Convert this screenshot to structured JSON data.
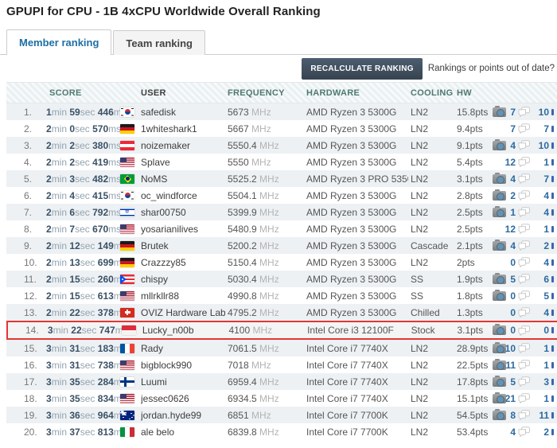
{
  "page_title": "GPUPI for CPU - 1B 4xCPU Worldwide Overall Ranking",
  "tabs": {
    "member": "Member ranking",
    "team": "Team ranking"
  },
  "toolbar": {
    "recalculate_label": "RECALCULATE RANKING",
    "out_of_date_label": "Rankings or points out of date?"
  },
  "table": {
    "columns": [
      "SCORE",
      "USER",
      "FREQUENCY",
      "HARDWARE",
      "COOLING",
      "HW"
    ],
    "rows": [
      {
        "rank": "1.",
        "min": "1",
        "sec": "59",
        "ms": "446",
        "country": "kr",
        "user": "safedisk",
        "frequency": "5673",
        "hardware": "AMD Ryzen 3 5300G",
        "cooling": "LN2",
        "points": "15.8pts",
        "has_photo": true,
        "comments": "7",
        "likes": "10",
        "highlight": false
      },
      {
        "rank": "2.",
        "min": "2",
        "sec": "0",
        "ms": "570",
        "country": "de",
        "user": "1whiteshark1",
        "frequency": "5667",
        "hardware": "AMD Ryzen 3 5300G",
        "cooling": "LN2",
        "points": "9.4pts",
        "has_photo": false,
        "comments": "7",
        "likes": "7",
        "highlight": false
      },
      {
        "rank": "3.",
        "min": "2",
        "sec": "2",
        "ms": "380",
        "country": "at",
        "user": "noizemaker",
        "frequency": "5550.4",
        "hardware": "AMD Ryzen 3 5300G",
        "cooling": "LN2",
        "points": "9.1pts",
        "has_photo": true,
        "comments": "4",
        "likes": "10",
        "highlight": false
      },
      {
        "rank": "4.",
        "min": "2",
        "sec": "2",
        "ms": "419",
        "country": "us",
        "user": "Splave",
        "frequency": "5550",
        "hardware": "AMD Ryzen 3 5300G",
        "cooling": "LN2",
        "points": "5.4pts",
        "has_photo": false,
        "comments": "12",
        "likes": "1",
        "highlight": false
      },
      {
        "rank": "5.",
        "min": "2",
        "sec": "3",
        "ms": "482",
        "country": "br",
        "user": "NoMS",
        "frequency": "5525.2",
        "hardware": "AMD Ryzen 3 PRO 5350G",
        "cooling": "LN2",
        "points": "3.1pts",
        "has_photo": true,
        "comments": "4",
        "likes": "7",
        "highlight": false
      },
      {
        "rank": "6.",
        "min": "2",
        "sec": "4",
        "ms": "415",
        "country": "kr",
        "user": "oc_windforce",
        "frequency": "5504.1",
        "hardware": "AMD Ryzen 3 5300G",
        "cooling": "LN2",
        "points": "2.8pts",
        "has_photo": true,
        "comments": "2",
        "likes": "4",
        "highlight": false
      },
      {
        "rank": "7.",
        "min": "2",
        "sec": "6",
        "ms": "792",
        "country": "il",
        "user": "shar00750",
        "frequency": "5399.9",
        "hardware": "AMD Ryzen 3 5300G",
        "cooling": "LN2",
        "points": "2.5pts",
        "has_photo": true,
        "comments": "1",
        "likes": "4",
        "highlight": false
      },
      {
        "rank": "8.",
        "min": "2",
        "sec": "7",
        "ms": "670",
        "country": "us",
        "user": "yosarianilives",
        "frequency": "5480.9",
        "hardware": "AMD Ryzen 3 5300G",
        "cooling": "LN2",
        "points": "2.5pts",
        "has_photo": false,
        "comments": "12",
        "likes": "1",
        "highlight": false
      },
      {
        "rank": "9.",
        "min": "2",
        "sec": "12",
        "ms": "149",
        "country": "de",
        "user": "Brutek",
        "frequency": "5200.2",
        "hardware": "AMD Ryzen 3 5300G",
        "cooling": "Cascade",
        "points": "2.1pts",
        "has_photo": true,
        "comments": "4",
        "likes": "2",
        "highlight": false
      },
      {
        "rank": "10.",
        "min": "2",
        "sec": "13",
        "ms": "699",
        "country": "de",
        "user": "Crazzzy85",
        "frequency": "5150.4",
        "hardware": "AMD Ryzen 3 5300G",
        "cooling": "LN2",
        "points": "2pts",
        "has_photo": false,
        "comments": "0",
        "likes": "4",
        "highlight": false
      },
      {
        "rank": "11.",
        "min": "2",
        "sec": "15",
        "ms": "260",
        "country": "pr",
        "user": "chispy",
        "frequency": "5030.4",
        "hardware": "AMD Ryzen 3 5300G",
        "cooling": "SS",
        "points": "1.9pts",
        "has_photo": true,
        "comments": "5",
        "likes": "6",
        "highlight": false
      },
      {
        "rank": "12.",
        "min": "2",
        "sec": "15",
        "ms": "613",
        "country": "us",
        "user": "mllrkllr88",
        "frequency": "4990.8",
        "hardware": "AMD Ryzen 3 5300G",
        "cooling": "SS",
        "points": "1.8pts",
        "has_photo": true,
        "comments": "0",
        "likes": "5",
        "highlight": false
      },
      {
        "rank": "13.",
        "min": "2",
        "sec": "22",
        "ms": "378",
        "country": "ch",
        "user": "OVIZ Hardware Lab",
        "frequency": "4795.2",
        "hardware": "AMD Ryzen 3 5300G",
        "cooling": "Chilled",
        "points": "1.3pts",
        "has_photo": false,
        "comments": "0",
        "likes": "4",
        "highlight": false
      },
      {
        "rank": "14.",
        "min": "3",
        "sec": "22",
        "ms": "747",
        "country": "id",
        "user": "Lucky_n00b",
        "frequency": "4100",
        "hardware": "Intel Core i3 12100F",
        "cooling": "Stock",
        "points": "3.1pts",
        "has_photo": true,
        "comments": "0",
        "likes": "0",
        "highlight": true
      },
      {
        "rank": "15.",
        "min": "3",
        "sec": "31",
        "ms": "183",
        "country": "fr",
        "user": "Rady",
        "frequency": "7061.5",
        "hardware": "Intel Core i7 7740X",
        "cooling": "LN2",
        "points": "28.9pts",
        "has_photo": true,
        "comments": "10",
        "likes": "1",
        "highlight": false
      },
      {
        "rank": "16.",
        "min": "3",
        "sec": "31",
        "ms": "738",
        "country": "us",
        "user": "bigblock990",
        "frequency": "7018",
        "hardware": "Intel Core i7 7740X",
        "cooling": "LN2",
        "points": "22.5pts",
        "has_photo": true,
        "comments": "11",
        "likes": "1",
        "highlight": false
      },
      {
        "rank": "17.",
        "min": "3",
        "sec": "35",
        "ms": "284",
        "country": "fi",
        "user": "Luumi",
        "frequency": "6959.4",
        "hardware": "Intel Core i7 7740X",
        "cooling": "LN2",
        "points": "17.8pts",
        "has_photo": true,
        "comments": "5",
        "likes": "3",
        "highlight": false
      },
      {
        "rank": "18.",
        "min": "3",
        "sec": "35",
        "ms": "834",
        "country": "us",
        "user": "jessec0626",
        "frequency": "6934.5",
        "hardware": "Intel Core i7 7740X",
        "cooling": "LN2",
        "points": "15.1pts",
        "has_photo": true,
        "comments": "21",
        "likes": "1",
        "highlight": false
      },
      {
        "rank": "19.",
        "min": "3",
        "sec": "36",
        "ms": "964",
        "country": "au",
        "user": "jordan.hyde99",
        "frequency": "6851",
        "hardware": "Intel Core i7 7700K",
        "cooling": "LN2",
        "points": "54.5pts",
        "has_photo": true,
        "comments": "8",
        "likes": "11",
        "highlight": false
      },
      {
        "rank": "20.",
        "min": "3",
        "sec": "37",
        "ms": "813",
        "country": "it",
        "user": "ale belo",
        "frequency": "6839.8",
        "hardware": "Intel Core i7 7700K",
        "cooling": "LN2",
        "points": "53.4pts",
        "has_photo": false,
        "comments": "4",
        "likes": "2",
        "highlight": false
      }
    ]
  },
  "colors": {
    "accent_blue": "#1d6fa5",
    "header_teal": "#4f7a70",
    "button_slate": "#37434f",
    "highlight_red": "#e23733",
    "row_alt": "#edf1f4",
    "score_number": "#3a5166",
    "count_blue": "#2d6a9f"
  },
  "units": {
    "min": "min",
    "sec": "sec",
    "ms": "ms",
    "mhz": "MHz"
  }
}
